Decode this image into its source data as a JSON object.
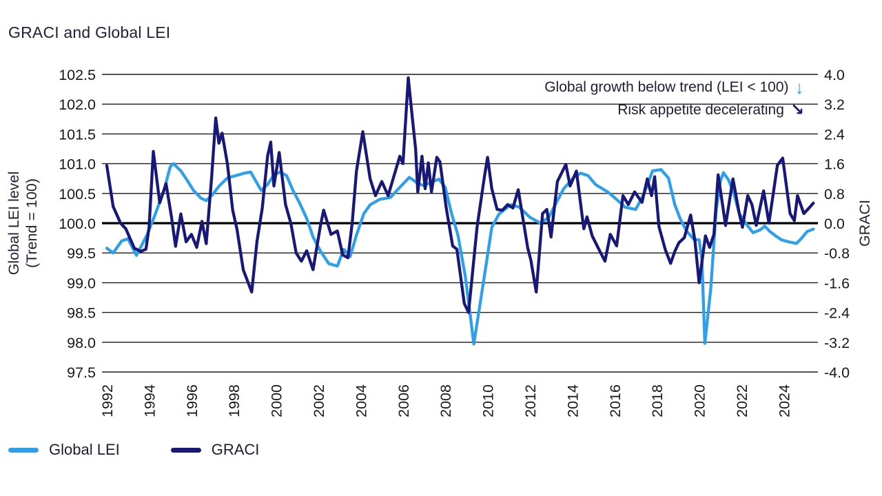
{
  "title": "GRACI and Global LEI",
  "annotations": {
    "line1": {
      "text": "Global growth below trend (LEI < 100)",
      "arrow": "↓",
      "arrow_color": "#3aa2f0"
    },
    "line2": {
      "text": "Risk appetite decelerating",
      "arrow": "↘",
      "arrow_color": "#181878"
    }
  },
  "legend": {
    "items": [
      {
        "label": "Global LEI",
        "color": "#2e9fea"
      },
      {
        "label": "GRACI",
        "color": "#181878"
      }
    ]
  },
  "axes": {
    "left": {
      "title_line1": "Global LEI level",
      "title_line2": "(Trend = 100)",
      "ticks": [
        "102.5",
        "102.0",
        "101.5",
        "101.0",
        "100.5",
        "100.0",
        "99.5",
        "99.0",
        "98.5",
        "98.0",
        "97.5"
      ]
    },
    "right": {
      "title": "GRACI",
      "ticks": [
        "4.0",
        "3.2",
        "2.4",
        "1.6",
        "0.8",
        "0.0",
        "-0.8",
        "-1.6",
        "-2.4",
        "-3.2",
        "-4.0"
      ]
    },
    "x": {
      "ticks": [
        "1992",
        "1994",
        "1996",
        "1998",
        "2000",
        "2002",
        "2004",
        "2006",
        "2008",
        "2010",
        "2012",
        "2014",
        "2016",
        "2018",
        "2020",
        "2022",
        "2024"
      ]
    }
  },
  "colors": {
    "grid": "#1a1a1a",
    "zero_line": "#000000",
    "tick_text": "#17171f",
    "lei_line": "#2e9fea",
    "graci_line": "#181878"
  },
  "chart_data": {
    "type": "line",
    "title": "GRACI and Global LEI",
    "x_range": [
      1991.7,
      2025.7
    ],
    "x_ticks": [
      1992,
      1994,
      1996,
      1998,
      2000,
      2002,
      2004,
      2006,
      2008,
      2010,
      2012,
      2014,
      2016,
      2018,
      2020,
      2022,
      2024
    ],
    "left_axis": {
      "label": "Global LEI level (Trend = 100)",
      "range": [
        97.5,
        102.5
      ],
      "tick_step": 0.5
    },
    "right_axis": {
      "label": "GRACI",
      "range": [
        -4.0,
        4.0
      ],
      "tick_step": 0.8
    },
    "grid": true,
    "legend_position": "bottom-left",
    "series": [
      {
        "name": "Global LEI",
        "axis": "left",
        "color": "#2e9fea",
        "points": [
          [
            1992.0,
            99.58
          ],
          [
            1992.3,
            99.5
          ],
          [
            1992.7,
            99.7
          ],
          [
            1993.0,
            99.74
          ],
          [
            1993.4,
            99.46
          ],
          [
            1993.9,
            99.8
          ],
          [
            1994.3,
            100.16
          ],
          [
            1994.7,
            100.55
          ],
          [
            1995.0,
            100.95
          ],
          [
            1995.15,
            101.0
          ],
          [
            1995.5,
            100.88
          ],
          [
            1995.8,
            100.72
          ],
          [
            1996.1,
            100.55
          ],
          [
            1996.45,
            100.42
          ],
          [
            1996.7,
            100.38
          ],
          [
            1997.0,
            100.48
          ],
          [
            1997.3,
            100.62
          ],
          [
            1997.7,
            100.76
          ],
          [
            1998.1,
            100.8
          ],
          [
            1998.5,
            100.84
          ],
          [
            1998.8,
            100.86
          ],
          [
            1999.3,
            100.55
          ],
          [
            1999.6,
            100.65
          ],
          [
            1999.9,
            100.81
          ],
          [
            2000.2,
            100.86
          ],
          [
            2000.5,
            100.8
          ],
          [
            2000.8,
            100.55
          ],
          [
            2001.1,
            100.35
          ],
          [
            2001.45,
            100.08
          ],
          [
            2001.75,
            99.77
          ],
          [
            2002.1,
            99.53
          ],
          [
            2002.5,
            99.32
          ],
          [
            2002.9,
            99.28
          ],
          [
            2003.2,
            99.56
          ],
          [
            2003.5,
            99.44
          ],
          [
            2003.8,
            99.8
          ],
          [
            2004.15,
            100.16
          ],
          [
            2004.45,
            100.31
          ],
          [
            2004.9,
            100.4
          ],
          [
            2005.4,
            100.43
          ],
          [
            2005.9,
            100.62
          ],
          [
            2006.3,
            100.77
          ],
          [
            2006.7,
            100.67
          ],
          [
            2007.0,
            100.63
          ],
          [
            2007.4,
            100.7
          ],
          [
            2007.7,
            100.74
          ],
          [
            2008.0,
            100.6
          ],
          [
            2008.3,
            100.16
          ],
          [
            2008.6,
            99.8
          ],
          [
            2008.95,
            99.1
          ],
          [
            2009.2,
            98.4
          ],
          [
            2009.35,
            97.97
          ],
          [
            2009.7,
            98.77
          ],
          [
            2009.95,
            99.35
          ],
          [
            2010.2,
            99.93
          ],
          [
            2010.55,
            100.16
          ],
          [
            2011.1,
            100.31
          ],
          [
            2011.5,
            100.27
          ],
          [
            2012.0,
            100.1
          ],
          [
            2012.5,
            100.0
          ],
          [
            2012.9,
            100.1
          ],
          [
            2013.2,
            100.31
          ],
          [
            2013.6,
            100.58
          ],
          [
            2014.1,
            100.78
          ],
          [
            2014.4,
            100.84
          ],
          [
            2014.75,
            100.8
          ],
          [
            2015.1,
            100.65
          ],
          [
            2015.7,
            100.52
          ],
          [
            2016.0,
            100.43
          ],
          [
            2016.5,
            100.27
          ],
          [
            2017.0,
            100.23
          ],
          [
            2017.4,
            100.5
          ],
          [
            2017.8,
            100.88
          ],
          [
            2018.2,
            100.9
          ],
          [
            2018.55,
            100.76
          ],
          [
            2018.85,
            100.31
          ],
          [
            2019.1,
            100.08
          ],
          [
            2019.4,
            99.87
          ],
          [
            2019.75,
            99.73
          ],
          [
            2020.0,
            99.72
          ],
          [
            2020.13,
            99.4
          ],
          [
            2020.27,
            97.98
          ],
          [
            2020.55,
            98.9
          ],
          [
            2020.8,
            100.2
          ],
          [
            2021.0,
            100.7
          ],
          [
            2021.15,
            100.85
          ],
          [
            2021.4,
            100.72
          ],
          [
            2021.65,
            100.49
          ],
          [
            2021.9,
            100.16
          ],
          [
            2022.2,
            100.0
          ],
          [
            2022.55,
            99.84
          ],
          [
            2022.9,
            99.89
          ],
          [
            2023.1,
            99.95
          ],
          [
            2023.35,
            99.86
          ],
          [
            2023.6,
            99.79
          ],
          [
            2023.9,
            99.72
          ],
          [
            2024.2,
            99.69
          ],
          [
            2024.6,
            99.66
          ],
          [
            2024.85,
            99.75
          ],
          [
            2025.1,
            99.86
          ],
          [
            2025.4,
            99.9
          ]
        ]
      },
      {
        "name": "GRACI",
        "axis": "right",
        "color": "#181878",
        "points": [
          [
            1992.0,
            1.55
          ],
          [
            1992.3,
            0.45
          ],
          [
            1992.65,
            0.0
          ],
          [
            1992.9,
            -0.15
          ],
          [
            1993.3,
            -0.67
          ],
          [
            1993.6,
            -0.76
          ],
          [
            1993.85,
            -0.7
          ],
          [
            1994.0,
            -0.1
          ],
          [
            1994.2,
            1.93
          ],
          [
            1994.5,
            0.55
          ],
          [
            1994.8,
            1.06
          ],
          [
            1995.05,
            0.2
          ],
          [
            1995.25,
            -0.62
          ],
          [
            1995.5,
            0.25
          ],
          [
            1995.75,
            -0.5
          ],
          [
            1996.0,
            -0.3
          ],
          [
            1996.25,
            -0.65
          ],
          [
            1996.5,
            0.05
          ],
          [
            1996.7,
            -0.55
          ],
          [
            1996.95,
            1.2
          ],
          [
            1997.15,
            2.83
          ],
          [
            1997.3,
            2.15
          ],
          [
            1997.45,
            2.42
          ],
          [
            1997.7,
            1.6
          ],
          [
            1997.95,
            0.35
          ],
          [
            1998.15,
            -0.15
          ],
          [
            1998.45,
            -1.25
          ],
          [
            1998.85,
            -1.85
          ],
          [
            1999.1,
            -0.48
          ],
          [
            1999.35,
            0.4
          ],
          [
            1999.6,
            1.8
          ],
          [
            1999.75,
            2.18
          ],
          [
            1999.9,
            1.0
          ],
          [
            2000.15,
            1.9
          ],
          [
            2000.45,
            0.5
          ],
          [
            2000.7,
            0.0
          ],
          [
            2000.95,
            -0.8
          ],
          [
            2001.2,
            -1.02
          ],
          [
            2001.45,
            -0.74
          ],
          [
            2001.75,
            -1.25
          ],
          [
            2002.1,
            -0.06
          ],
          [
            2002.25,
            0.35
          ],
          [
            2002.6,
            -0.3
          ],
          [
            2002.9,
            -0.21
          ],
          [
            2003.15,
            -0.85
          ],
          [
            2003.4,
            -0.93
          ],
          [
            2003.6,
            0.0
          ],
          [
            2003.8,
            1.4
          ],
          [
            2004.1,
            2.46
          ],
          [
            2004.45,
            1.19
          ],
          [
            2004.7,
            0.74
          ],
          [
            2005.0,
            1.12
          ],
          [
            2005.3,
            0.74
          ],
          [
            2005.85,
            1.8
          ],
          [
            2006.0,
            1.6
          ],
          [
            2006.25,
            3.91
          ],
          [
            2006.45,
            2.8
          ],
          [
            2006.6,
            1.99
          ],
          [
            2006.7,
            0.84
          ],
          [
            2006.9,
            1.8
          ],
          [
            2007.05,
            0.93
          ],
          [
            2007.2,
            1.62
          ],
          [
            2007.35,
            0.84
          ],
          [
            2007.6,
            1.77
          ],
          [
            2007.75,
            1.65
          ],
          [
            2008.05,
            0.4
          ],
          [
            2008.35,
            -0.61
          ],
          [
            2008.55,
            -0.7
          ],
          [
            2008.9,
            -2.16
          ],
          [
            2009.1,
            -2.4
          ],
          [
            2009.5,
            -0.11
          ],
          [
            2009.85,
            1.25
          ],
          [
            2010.0,
            1.77
          ],
          [
            2010.2,
            0.93
          ],
          [
            2010.45,
            0.37
          ],
          [
            2010.7,
            0.35
          ],
          [
            2010.95,
            0.5
          ],
          [
            2011.2,
            0.41
          ],
          [
            2011.45,
            0.9
          ],
          [
            2011.9,
            -0.67
          ],
          [
            2012.05,
            -1.0
          ],
          [
            2012.3,
            -1.85
          ],
          [
            2012.6,
            0.26
          ],
          [
            2012.8,
            0.37
          ],
          [
            2013.0,
            -0.37
          ],
          [
            2013.3,
            1.12
          ],
          [
            2013.7,
            1.58
          ],
          [
            2013.9,
            1.0
          ],
          [
            2014.2,
            1.4
          ],
          [
            2014.55,
            -0.15
          ],
          [
            2014.7,
            0.17
          ],
          [
            2014.95,
            -0.35
          ],
          [
            2015.35,
            -0.8
          ],
          [
            2015.55,
            -1.02
          ],
          [
            2015.8,
            -0.3
          ],
          [
            2016.1,
            -0.61
          ],
          [
            2016.4,
            0.74
          ],
          [
            2016.65,
            0.5
          ],
          [
            2016.95,
            0.84
          ],
          [
            2017.3,
            0.56
          ],
          [
            2017.55,
            1.19
          ],
          [
            2017.75,
            0.74
          ],
          [
            2017.9,
            1.25
          ],
          [
            2018.1,
            -0.09
          ],
          [
            2018.4,
            -0.71
          ],
          [
            2018.65,
            -1.08
          ],
          [
            2018.85,
            -0.76
          ],
          [
            2019.05,
            -0.52
          ],
          [
            2019.3,
            -0.39
          ],
          [
            2019.6,
            0.22
          ],
          [
            2019.8,
            -0.47
          ],
          [
            2020.0,
            -1.6
          ],
          [
            2020.3,
            -0.34
          ],
          [
            2020.5,
            -0.65
          ],
          [
            2020.7,
            -0.3
          ],
          [
            2020.9,
            1.3
          ],
          [
            2021.25,
            -0.06
          ],
          [
            2021.6,
            1.19
          ],
          [
            2021.9,
            0.26
          ],
          [
            2022.05,
            -0.11
          ],
          [
            2022.3,
            0.74
          ],
          [
            2022.5,
            0.5
          ],
          [
            2022.7,
            -0.06
          ],
          [
            2023.05,
            0.87
          ],
          [
            2023.3,
            0.0
          ],
          [
            2023.7,
            1.56
          ],
          [
            2023.95,
            1.75
          ],
          [
            2024.3,
            0.26
          ],
          [
            2024.5,
            0.07
          ],
          [
            2024.65,
            0.74
          ],
          [
            2024.95,
            0.26
          ],
          [
            2025.15,
            0.38
          ],
          [
            2025.4,
            0.54
          ]
        ]
      }
    ]
  }
}
